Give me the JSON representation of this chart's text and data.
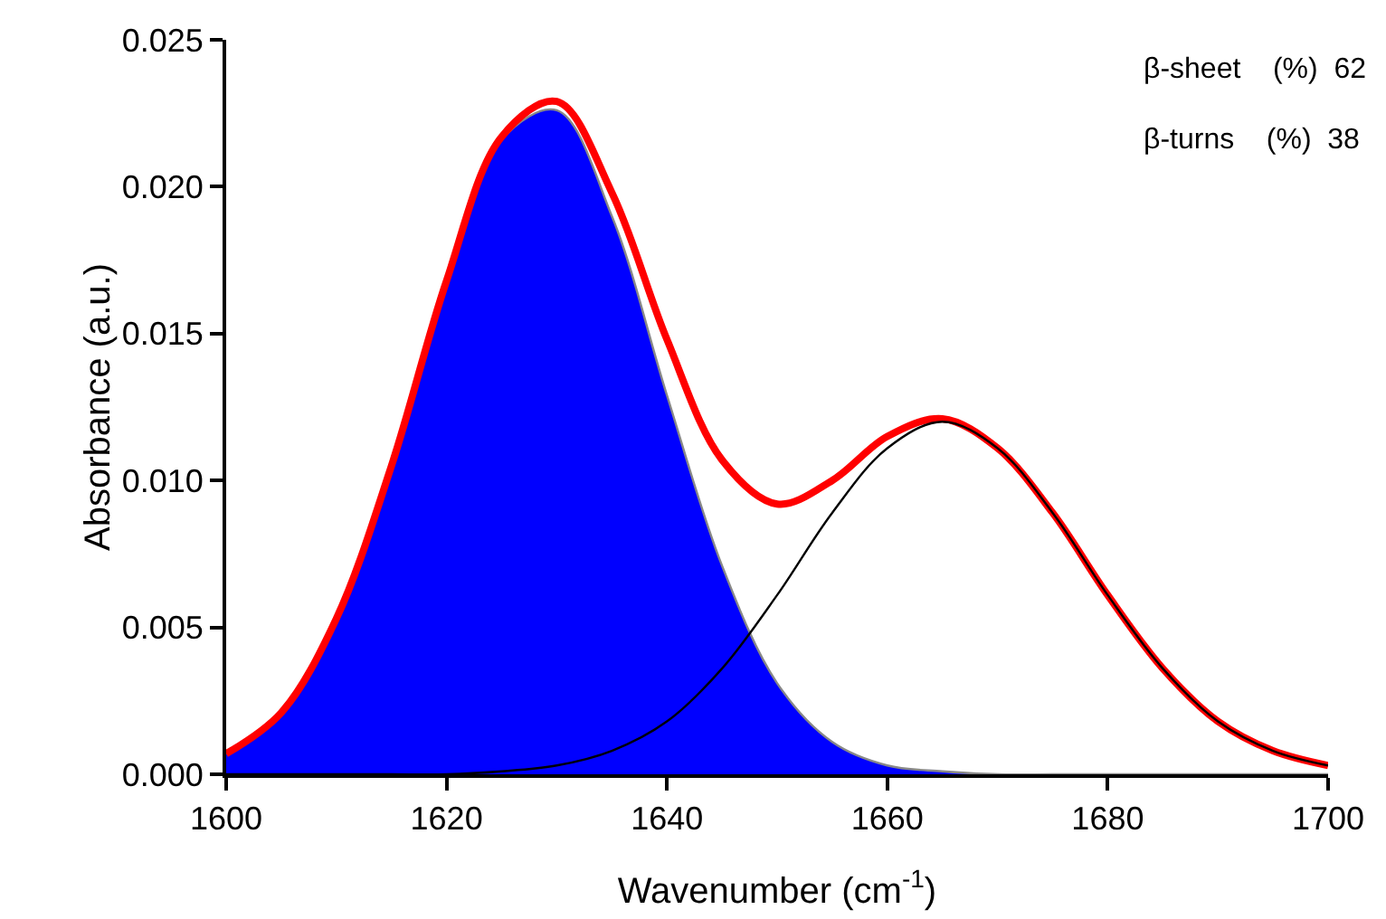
{
  "chart_data": {
    "type": "line",
    "xlabel": "Wavenumber (cm$^{-1}$)",
    "ylabel": "Absorbance (a.u.)",
    "x": [
      1600,
      1605,
      1610,
      1615,
      1620,
      1625,
      1630,
      1635,
      1640,
      1645,
      1650,
      1655,
      1660,
      1665,
      1670,
      1675,
      1680,
      1685,
      1690,
      1695,
      1700
    ],
    "series": [
      {
        "type": "area",
        "color": "#0000ff",
        "values": [
          0.0007,
          0.0021,
          0.0053,
          0.0104,
          0.0167,
          0.0216,
          0.0226,
          0.019,
          0.0129,
          0.0071,
          0.0031,
          0.0011,
          0.0003,
          0.0001,
          0,
          0,
          0,
          0,
          0,
          0,
          0
        ]
      },
      {
        "type": "line",
        "color": "#ff0000",
        "values": [
          0.0007,
          0.0021,
          0.0053,
          0.0105,
          0.0168,
          0.0217,
          0.0229,
          0.0198,
          0.0148,
          0.0107,
          0.0092,
          0.01,
          0.0115,
          0.0121,
          0.0111,
          0.0089,
          0.0061,
          0.0036,
          0.0018,
          0.0008,
          0.0003
        ]
      },
      {
        "type": "line",
        "color": "#000000",
        "values": [
          0,
          0,
          0,
          0,
          0,
          0.0001,
          0.0003,
          0.0008,
          0.0018,
          0.0036,
          0.0061,
          0.0089,
          0.0111,
          0.012,
          0.0111,
          0.0089,
          0.0061,
          0.0036,
          0.0018,
          0.0008,
          0.0003
        ]
      }
    ],
    "xlim": [
      1600,
      1700
    ],
    "xticks": [
      1600,
      1620,
      1640,
      1660,
      1680,
      1700
    ],
    "ylim": [
      0,
      0.025
    ],
    "yticks": [
      {
        "value": 0,
        "label": "0.000"
      },
      {
        "value": 0.005,
        "label": "0.005"
      },
      {
        "value": 0.01,
        "label": "0.010"
      },
      {
        "value": 0.015,
        "label": "0.015"
      },
      {
        "value": 0.02,
        "label": "0.020"
      },
      {
        "value": 0.025,
        "label": "0.025"
      }
    ],
    "annotations": [
      "β-sheet    (%)  62",
      "β-turns    (%)  38"
    ],
    "grid": false,
    "marker": "none",
    "line_style": "solid"
  }
}
